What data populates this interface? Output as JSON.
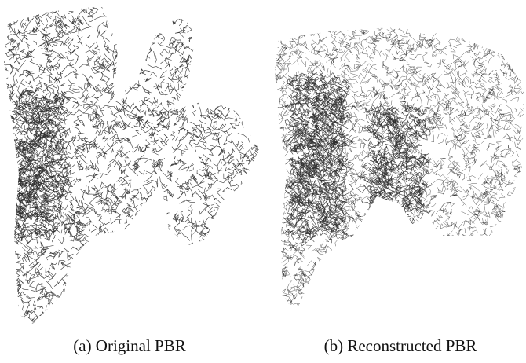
{
  "figure": {
    "captions": [
      "(a) Original PBR",
      "(b) Reconstructed PBR"
    ]
  }
}
